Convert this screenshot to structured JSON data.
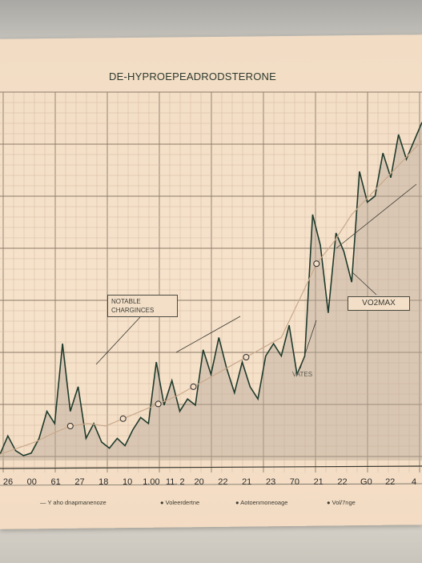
{
  "chart_data": {
    "type": "line",
    "title": "DE-HYPROEPEADRODSTERONE",
    "x_tick_labels": [
      "26",
      "00",
      "61",
      "27",
      "18",
      "10",
      "1.00",
      "11. 2",
      "20",
      "22",
      "21",
      "23",
      "70",
      "21",
      "22",
      "G0",
      "22",
      "4"
    ],
    "series": [
      {
        "values": [
          5,
          20,
          8,
          4,
          6,
          18,
          40,
          30,
          95,
          40,
          60,
          18,
          30,
          15,
          10,
          18,
          12,
          25,
          35,
          30,
          80,
          45,
          65,
          40,
          50,
          45,
          90,
          70,
          100,
          75,
          55,
          80,
          60,
          50,
          85,
          95,
          85,
          110,
          70,
          85,
          200,
          175,
          120,
          185,
          170,
          145,
          235,
          210,
          215,
          250,
          230,
          265,
          245,
          260,
          275
        ]
      },
      {
        "values": [
          5,
          10,
          15,
          22,
          28,
          30,
          28,
          34,
          40,
          46,
          52,
          60,
          68,
          76,
          84,
          92,
          100,
          130,
          160,
          178,
          200,
          215,
          230,
          245,
          260
        ]
      }
    ],
    "annotations": [
      "NOTABLE CHARGINCES",
      "VO2MAX",
      "VATES"
    ],
    "legend": [
      "Y aho dnapmanenoze",
      "Voleerdertne",
      "Aotoenmoneoage",
      "Vol/7nge"
    ],
    "grid": true,
    "legend_position": "bottom"
  },
  "colors": {
    "line": "#1f3b2c",
    "fill": "#b9a998",
    "grid": "#c7ab95",
    "paper": "#f4dec6"
  }
}
